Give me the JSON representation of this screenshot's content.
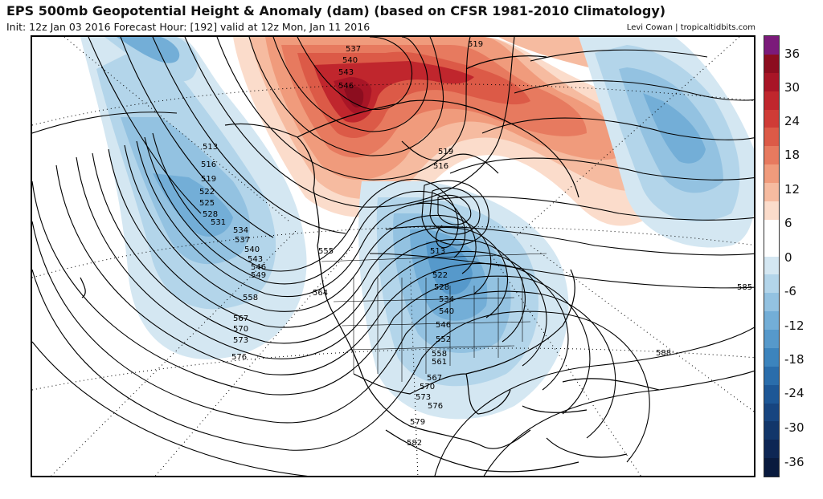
{
  "header": {
    "title": "EPS 500mb Geopotential Height & Anomaly (dam) (based on CFSR 1981-2010 Climatology)",
    "subtitle": "Init: 12z Jan 03 2016   Forecast Hour: [192]   valid at 12z Mon, Jan 11 2016",
    "credit": "Levi Cowan | tropicaltidbits.com"
  },
  "colorbar": {
    "labels": [
      "36",
      "30",
      "24",
      "18",
      "12",
      "6",
      "0",
      "-6",
      "-12",
      "-18",
      "-24",
      "-30",
      "-36"
    ],
    "colors": [
      "#7b1a7a",
      "#8c0d1f",
      "#a81526",
      "#c0262d",
      "#cf3b36",
      "#dc5a47",
      "#e77a5f",
      "#f09b7c",
      "#f6bba0",
      "#fbdccb",
      "#ffffff",
      "#ffffff",
      "#d4e7f2",
      "#b3d5ea",
      "#93c2e1",
      "#73aed7",
      "#5699cb",
      "#3c84bd",
      "#2a6dab",
      "#1d5796",
      "#174580",
      "#12366a",
      "#0d2654",
      "#091a3e"
    ]
  },
  "contours": {
    "west_pacific": [
      "513",
      "516",
      "519",
      "522",
      "525",
      "528",
      "531",
      "534",
      "537",
      "540",
      "543",
      "546",
      "549",
      "558",
      "567",
      "570",
      "573",
      "576"
    ],
    "ridge_top": [
      "537",
      "540",
      "543",
      "546",
      "519"
    ],
    "low_center": [
      "519",
      "516"
    ],
    "central_us": [
      "555",
      "564",
      "513",
      "522",
      "528",
      "534",
      "540",
      "546",
      "552",
      "558",
      "561",
      "567",
      "570",
      "573",
      "576"
    ],
    "south": [
      "579",
      "582"
    ],
    "atlantic": [
      "585",
      "588"
    ]
  }
}
